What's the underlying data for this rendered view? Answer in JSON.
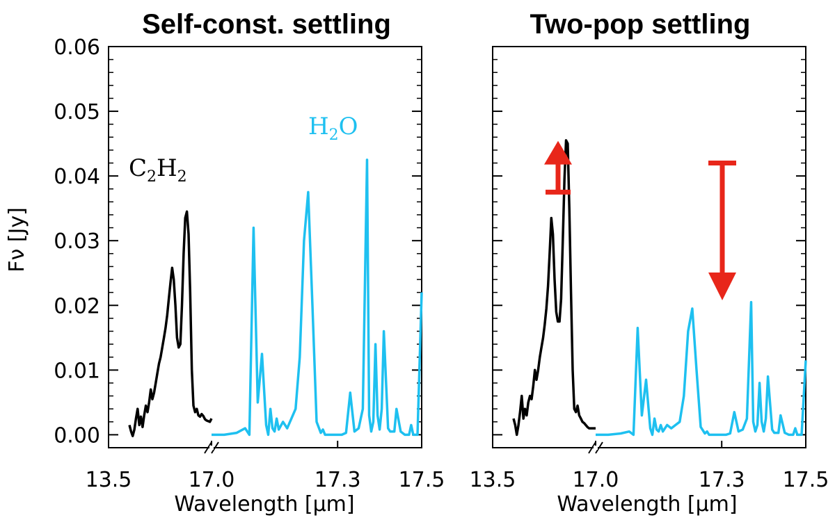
{
  "chart_data": [
    {
      "type": "line",
      "title": "Self-const. settling",
      "ylabel": "Fν [Jy]",
      "xlabel": "Wavelength [μm]",
      "ylim": [
        -0.002,
        0.06
      ],
      "yticks": [
        "0.00",
        "0.01",
        "0.02",
        "0.03",
        "0.04",
        "0.05",
        "0.06"
      ],
      "xticks": [
        "13.5",
        "17.0",
        "17.3",
        "17.5"
      ],
      "broken_x_axis": true,
      "annotations": [
        {
          "text": "C₂H₂",
          "color": "#000000",
          "parts": [
            "C",
            "2",
            "H",
            "2"
          ]
        },
        {
          "text": "H₂O",
          "color": "#1ec0f0",
          "parts": [
            "H",
            "2",
            "O"
          ]
        }
      ],
      "series": [
        {
          "label": "C2H2",
          "color": "#000000",
          "x": [
            13.5,
            13.57,
            13.64,
            13.71,
            13.78,
            13.85,
            13.92,
            13.99,
            14.06,
            14.13,
            14.2,
            14.27,
            14.34,
            14.41,
            14.48,
            14.55,
            14.62,
            14.69,
            14.76,
            14.83,
            14.9,
            14.97,
            15.04,
            15.11,
            15.18,
            15.25,
            15.32,
            15.39,
            15.46,
            15.53,
            15.6,
            15.67,
            15.74,
            15.81,
            15.88,
            15.95,
            16.02,
            16.09,
            16.16,
            16.23,
            16.3,
            16.37,
            16.44,
            16.51,
            16.58,
            16.65,
            16.72,
            16.79,
            16.86,
            16.93,
            17.0
          ],
          "y": [
            0.0015,
            0.0005,
            -0.0002,
            0.0008,
            0.0025,
            0.004,
            0.0015,
            0.0028,
            0.0012,
            0.003,
            0.0045,
            0.0035,
            0.005,
            0.007,
            0.0055,
            0.0065,
            0.008,
            0.0095,
            0.011,
            0.012,
            0.0135,
            0.015,
            0.0165,
            0.0185,
            0.021,
            0.0235,
            0.0258,
            0.024,
            0.02,
            0.015,
            0.0135,
            0.014,
            0.02,
            0.028,
            0.0335,
            0.0345,
            0.031,
            0.022,
            0.01,
            0.0045,
            0.0035,
            0.004,
            0.003,
            0.0028,
            0.0032,
            0.0029,
            0.0024,
            0.0022,
            0.0021,
            0.002,
            0.0025
          ]
        },
        {
          "label": "H2O",
          "color": "#1ec0f0",
          "x": [
            17.0,
            17.03,
            17.06,
            17.08,
            17.09,
            17.1,
            17.11,
            17.12,
            17.13,
            17.135,
            17.14,
            17.145,
            17.15,
            17.155,
            17.16,
            17.17,
            17.18,
            17.19,
            17.2,
            17.21,
            17.22,
            17.23,
            17.24,
            17.25,
            17.26,
            17.265,
            17.27,
            17.275,
            17.28,
            17.29,
            17.3,
            17.31,
            17.32,
            17.33,
            17.34,
            17.35,
            17.36,
            17.37,
            17.375,
            17.38,
            17.385,
            17.39,
            17.395,
            17.4,
            17.405,
            17.41,
            17.42,
            17.425,
            17.43,
            17.435,
            17.44,
            17.45,
            17.46,
            17.47,
            17.475,
            17.48,
            17.49,
            17.5
          ],
          "y": [
            0.0,
            0.0,
            0.0003,
            0.001,
            0.0,
            0.032,
            0.005,
            0.0125,
            0.0015,
            0.0,
            0.004,
            0.001,
            0.0005,
            0.0025,
            0.0008,
            0.002,
            0.001,
            0.0025,
            0.004,
            0.012,
            0.03,
            0.0375,
            0.02,
            0.002,
            0.0003,
            0.0008,
            0.0,
            0.0,
            0.0,
            0.0,
            0.0,
            0.0,
            0.0003,
            0.0065,
            0.0005,
            0.001,
            0.004,
            0.0425,
            0.003,
            0.0005,
            0.002,
            0.014,
            0.003,
            0.0008,
            0.004,
            0.016,
            0.001,
            0.0005,
            0.0005,
            0.0005,
            0.004,
            0.0005,
            0.0,
            0.0,
            0.0015,
            0.0,
            0.0,
            0.022
          ]
        }
      ]
    },
    {
      "type": "line",
      "title": "Two-pop settling",
      "xlabel": "Wavelength [μm]",
      "ylim": [
        -0.002,
        0.06
      ],
      "xticks": [
        "13.5",
        "17.0",
        "17.3",
        "17.5"
      ],
      "broken_x_axis": true,
      "arrows": [
        {
          "color": "#e8261a",
          "direction": "up",
          "from": 0.0375,
          "to": 0.045
        },
        {
          "color": "#e8261a",
          "direction": "down",
          "from": 0.042,
          "to": 0.021
        }
      ],
      "series": [
        {
          "label": "C2H2",
          "color": "#000000",
          "x": [
            13.5,
            13.57,
            13.64,
            13.71,
            13.78,
            13.85,
            13.92,
            13.99,
            14.06,
            14.13,
            14.2,
            14.27,
            14.34,
            14.41,
            14.48,
            14.55,
            14.62,
            14.69,
            14.76,
            14.83,
            14.9,
            14.97,
            15.04,
            15.11,
            15.18,
            15.25,
            15.32,
            15.39,
            15.46,
            15.53,
            15.6,
            15.67,
            15.74,
            15.81,
            15.88,
            15.95,
            16.02,
            16.09,
            16.16,
            16.23,
            16.3,
            16.37,
            16.44,
            16.51,
            16.58,
            16.65,
            16.72,
            16.79,
            16.86,
            16.93,
            17.0
          ],
          "y": [
            0.0025,
            0.0015,
            0.0,
            0.0015,
            0.0035,
            0.006,
            0.0025,
            0.004,
            0.003,
            0.005,
            0.006,
            0.0055,
            0.0075,
            0.01,
            0.0085,
            0.01,
            0.012,
            0.0135,
            0.015,
            0.017,
            0.0195,
            0.023,
            0.028,
            0.0335,
            0.031,
            0.024,
            0.019,
            0.0175,
            0.0175,
            0.021,
            0.03,
            0.0395,
            0.0455,
            0.045,
            0.035,
            0.022,
            0.01,
            0.004,
            0.0035,
            0.0045,
            0.003,
            0.0025,
            0.002,
            0.0018,
            0.0015,
            0.0012,
            0.001,
            0.001,
            0.001,
            0.001,
            0.001
          ]
        },
        {
          "label": "H2O",
          "color": "#1ec0f0",
          "x": [
            17.0,
            17.03,
            17.06,
            17.08,
            17.09,
            17.1,
            17.11,
            17.12,
            17.13,
            17.135,
            17.14,
            17.145,
            17.15,
            17.155,
            17.16,
            17.17,
            17.18,
            17.19,
            17.2,
            17.21,
            17.22,
            17.23,
            17.24,
            17.25,
            17.26,
            17.265,
            17.27,
            17.275,
            17.28,
            17.29,
            17.3,
            17.31,
            17.32,
            17.33,
            17.34,
            17.35,
            17.36,
            17.37,
            17.375,
            17.38,
            17.385,
            17.39,
            17.395,
            17.4,
            17.405,
            17.41,
            17.42,
            17.425,
            17.43,
            17.435,
            17.44,
            17.45,
            17.46,
            17.47,
            17.475,
            17.48,
            17.49,
            17.5
          ],
          "y": [
            0.0,
            0.0,
            0.0002,
            0.0005,
            0.0,
            0.0165,
            0.003,
            0.0085,
            0.001,
            0.0,
            0.0025,
            0.0008,
            0.0005,
            0.0015,
            0.0005,
            0.0015,
            0.001,
            0.0015,
            0.002,
            0.006,
            0.016,
            0.0195,
            0.01,
            0.0012,
            0.0002,
            0.0005,
            0.0,
            0.0,
            0.0,
            0.0,
            0.0,
            0.0,
            0.0002,
            0.0035,
            0.0005,
            0.0008,
            0.0025,
            0.0205,
            0.002,
            0.0005,
            0.0015,
            0.008,
            0.002,
            0.0005,
            0.0025,
            0.009,
            0.0008,
            0.0003,
            0.0003,
            0.0003,
            0.003,
            0.0003,
            0.0,
            0.0,
            0.001,
            0.0,
            0.0,
            0.0115
          ]
        }
      ]
    }
  ]
}
